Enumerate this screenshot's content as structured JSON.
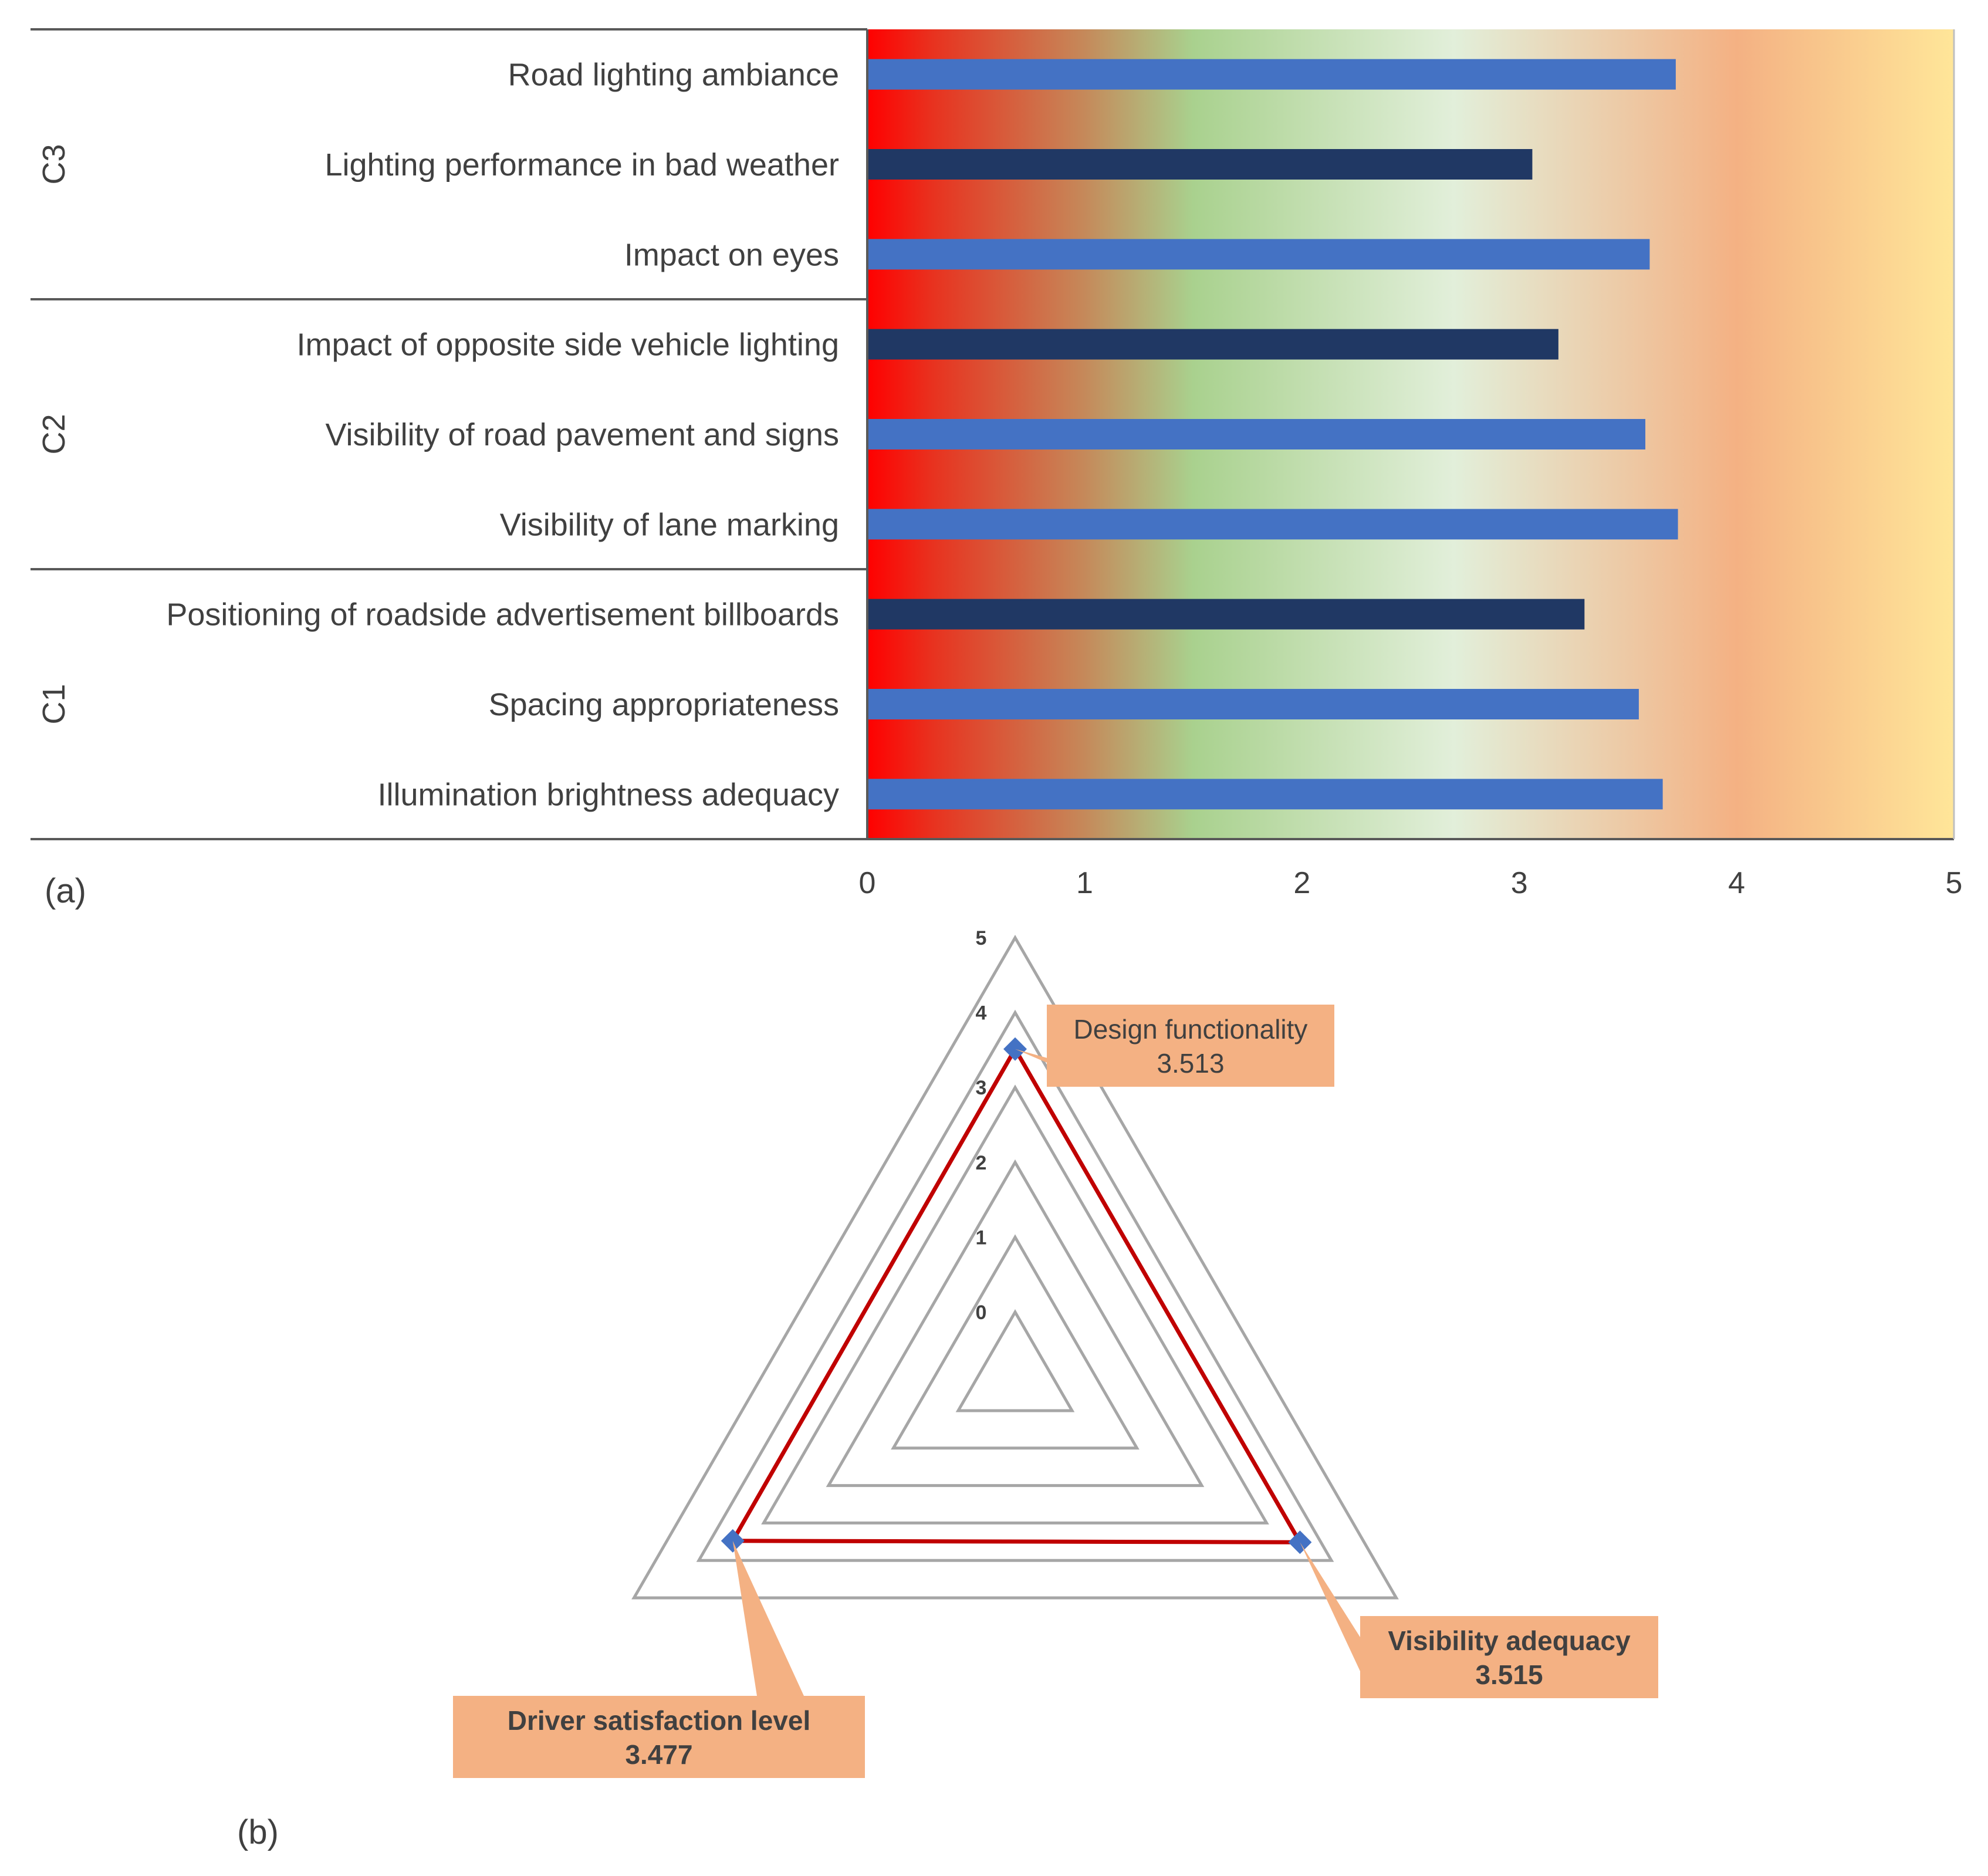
{
  "chart_data": [
    {
      "type": "bar",
      "orientation": "horizontal",
      "panel_label": "(a)",
      "categories": [
        "Road lighting ambiance",
        "Lighting performance in bad weather",
        "Impact on eyes",
        "Impact of opposite side vehicle lighting",
        "Visibility of road pavement and signs",
        "Visibility of lane marking",
        "Positioning of roadside advertisement billboards",
        "Spacing appropriateness",
        "Illumination brightness adequacy"
      ],
      "groups": [
        {
          "name": "C3",
          "members": [
            0,
            1,
            2
          ]
        },
        {
          "name": "C2",
          "members": [
            3,
            4,
            5
          ]
        },
        {
          "name": "C1",
          "members": [
            6,
            7,
            8
          ]
        }
      ],
      "values": [
        3.72,
        3.06,
        3.6,
        3.18,
        3.58,
        3.73,
        3.3,
        3.55,
        3.66
      ],
      "bar_colors": [
        "#4472C4",
        "#203864",
        "#4472C4",
        "#203864",
        "#4472C4",
        "#4472C4",
        "#203864",
        "#4472C4",
        "#4472C4"
      ],
      "xlim": [
        0,
        5
      ],
      "xticks": [
        "0",
        "1",
        "2",
        "3",
        "4",
        "5"
      ],
      "background_gradient": [
        "#FF0000",
        "#E8321F",
        "#C5895A",
        "#A9D18E",
        "#E2EFDA",
        "#F4B183",
        "#FFE699"
      ]
    },
    {
      "type": "radar",
      "panel_label": "(b)",
      "axes": [
        "Design functionality",
        "Visibility adequacy",
        "Driver satisfaction level"
      ],
      "values": [
        3.513,
        3.515,
        3.477
      ],
      "value_labels": [
        "3.513",
        "3.515",
        "3.477"
      ],
      "rlim": [
        0,
        5
      ],
      "rticks": [
        "0",
        "1",
        "2",
        "3",
        "4",
        "5"
      ],
      "series_color": "#C00000",
      "marker_color": "#4472C4",
      "grid_color": "#A6A6A6",
      "callout_color": "#F4B183"
    }
  ]
}
